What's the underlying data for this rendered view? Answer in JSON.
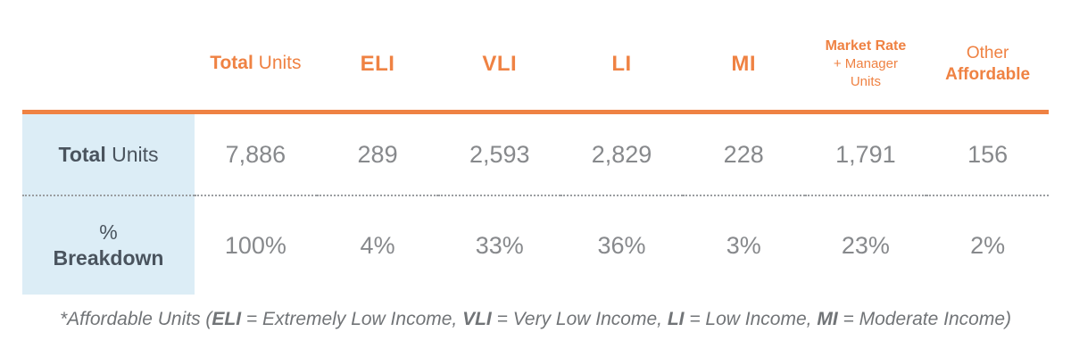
{
  "colors": {
    "accent_orange": "#EF8243",
    "label_cell_blue": "#DCEDF6",
    "label_text_dark": "#4A545E",
    "value_text_gray": "#87898C",
    "footnote_gray": "#717477"
  },
  "table": {
    "header": {
      "total_units": {
        "bold": "Total",
        "rest": " Units"
      },
      "eli": "ELI",
      "vli": "VLI",
      "li": "LI",
      "mi": "MI",
      "market_rate": {
        "line1": "Market Rate",
        "line2": "+ Manager",
        "line3": "Units"
      },
      "other": {
        "line1": "Other",
        "line2": "Affordable"
      }
    },
    "rows": {
      "total": {
        "label_bold": "Total",
        "label_rest": " Units",
        "values": [
          "7,886",
          "289",
          "2,593",
          "2,829",
          "228",
          "1,791",
          "156"
        ]
      },
      "breakdown": {
        "label_line1": "%",
        "label_line2": "Breakdown",
        "values": [
          "100%",
          "4%",
          "33%",
          "36%",
          "3%",
          "23%",
          "2%"
        ]
      }
    }
  },
  "footnote": {
    "segments": [
      {
        "text": "*Affordable Units ("
      },
      {
        "text": "ELI",
        "bold": true
      },
      {
        "text": " = Extremely Low Income, "
      },
      {
        "text": "VLI",
        "bold": true
      },
      {
        "text": " = Very Low Income, "
      },
      {
        "text": "LI",
        "bold": true
      },
      {
        "text": " = Low Income, "
      },
      {
        "text": "MI",
        "bold": true
      },
      {
        "text": " = Moderate Income)"
      }
    ]
  },
  "chart_data": {
    "type": "table",
    "columns": [
      "Total Units",
      "ELI",
      "VLI",
      "LI",
      "MI",
      "Market Rate + Manager Units",
      "Other Affordable"
    ],
    "rows": [
      {
        "label": "Total Units",
        "values": [
          7886,
          289,
          2593,
          2829,
          228,
          1791,
          156
        ]
      },
      {
        "label": "% Breakdown",
        "values": [
          "100%",
          "4%",
          "33%",
          "36%",
          "3%",
          "23%",
          "2%"
        ]
      }
    ],
    "footnote": "*Affordable Units (ELI = Extremely Low Income, VLI = Very Low Income, LI = Low Income, MI = Moderate Income)"
  }
}
